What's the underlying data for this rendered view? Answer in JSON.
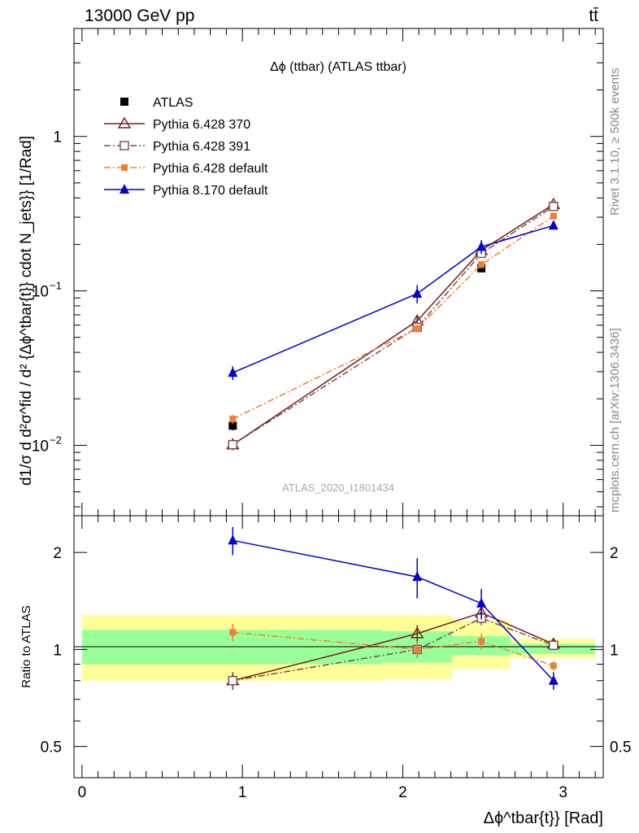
{
  "header": {
    "energy_label": "13000 GeV pp",
    "process_label": "tt̄"
  },
  "side_labels": {
    "rivet": "Rivet 3.1.10, ≥ 500k events",
    "mcplots": "mcplots.cern.ch [arXiv:1306.3436]"
  },
  "watermark": "ATLAS_2020_I1801434",
  "chart_data": [
    {
      "type": "line",
      "title": "Δϕ (ttbar) (ATLAS ttbar)",
      "ylabel": "d1/σ d d²σ^fid / d² {Δϕ^tbar{t}} cdot N_jets}} [1/Rad]",
      "yscale": "log",
      "ylim": [
        0.0035,
        5.0
      ],
      "xlim": [
        -0.05,
        3.25
      ],
      "yticks_major": [
        {
          "v": 0.01,
          "base": "10",
          "exp": "−2"
        },
        {
          "v": 0.1,
          "base": "10",
          "exp": "−1"
        },
        {
          "v": 1,
          "base": "1",
          "exp": ""
        }
      ],
      "legend_position": "top-left",
      "x": [
        0.94,
        2.09,
        2.49,
        2.94
      ],
      "series": [
        {
          "name": "ATLAS",
          "color": "#000000",
          "marker": "square-filled",
          "dash": "none",
          "values": [
            0.0134,
            0.058,
            0.14,
            0.355
          ],
          "errors": [
            0.0009,
            0.003,
            0.006,
            0.015
          ]
        },
        {
          "name": "Pythia 6.428 370",
          "color": "#7b1b1b",
          "marker": "triangle-open",
          "dash": "solid",
          "values": [
            0.0101,
            0.064,
            0.183,
            0.363
          ],
          "errors": [
            0.0008,
            0.004,
            0.009,
            0.012
          ]
        },
        {
          "name": "Pythia 6.428 391",
          "color": "#7b4b4b",
          "marker": "square-open",
          "dash": "dashdot",
          "values": [
            0.0101,
            0.058,
            0.175,
            0.352
          ],
          "errors": [
            0.0008,
            0.003,
            0.009,
            0.012
          ]
        },
        {
          "name": "Pythia 6.428 default",
          "color": "#f08030",
          "marker": "square-filled-small",
          "dash": "dashdot",
          "values": [
            0.0148,
            0.057,
            0.148,
            0.305
          ],
          "errors": [
            0.001,
            0.003,
            0.008,
            0.012
          ]
        },
        {
          "name": "Pythia 8.170 default",
          "color": "#0000cc",
          "marker": "triangle-filled",
          "dash": "solid",
          "values": [
            0.0295,
            0.096,
            0.193,
            0.265
          ],
          "errors": [
            0.003,
            0.013,
            0.02,
            0.016
          ]
        }
      ]
    },
    {
      "type": "line",
      "ylabel": "Ratio to ATLAS",
      "xlabel": "Δϕ^tbar{t}} [Rad]",
      "yscale": "log",
      "ylim": [
        0.4,
        2.6
      ],
      "xlim": [
        -0.05,
        3.25
      ],
      "yticks_major": [
        0.5,
        1,
        2
      ],
      "xticks_major": [
        0,
        1,
        2,
        3
      ],
      "reference_line": 1,
      "uncertainty_bands": [
        {
          "x0": 0.0,
          "x1": 1.87,
          "green": [
            0.9,
            1.15
          ],
          "yellow": [
            0.8,
            1.28
          ]
        },
        {
          "x0": 1.87,
          "x1": 2.31,
          "green": [
            0.91,
            1.14
          ],
          "yellow": [
            0.81,
            1.28
          ]
        },
        {
          "x0": 2.31,
          "x1": 2.67,
          "green": [
            0.96,
            1.1
          ],
          "yellow": [
            0.87,
            1.23
          ]
        },
        {
          "x0": 2.67,
          "x1": 3.2,
          "green": [
            0.97,
            1.04
          ],
          "yellow": [
            0.94,
            1.08
          ]
        }
      ],
      "x": [
        0.94,
        2.09,
        2.49,
        2.94
      ],
      "series": [
        {
          "name": "Pythia 6.428 370",
          "values": [
            0.8,
            1.12,
            1.3,
            1.04
          ],
          "errors": [
            0.05,
            0.07,
            0.06,
            0.035
          ]
        },
        {
          "name": "Pythia 6.428 391",
          "values": [
            0.8,
            1.0,
            1.25,
            1.03
          ],
          "errors": [
            0.05,
            0.06,
            0.06,
            0.035
          ]
        },
        {
          "name": "Pythia 6.428 default",
          "values": [
            1.13,
            1.0,
            1.06,
            0.89
          ],
          "errors": [
            0.07,
            0.06,
            0.06,
            0.03
          ]
        },
        {
          "name": "Pythia 8.170 default",
          "values": [
            2.18,
            1.68,
            1.39,
            0.8
          ],
          "errors": [
            0.22,
            0.24,
            0.15,
            0.05
          ]
        }
      ]
    }
  ]
}
